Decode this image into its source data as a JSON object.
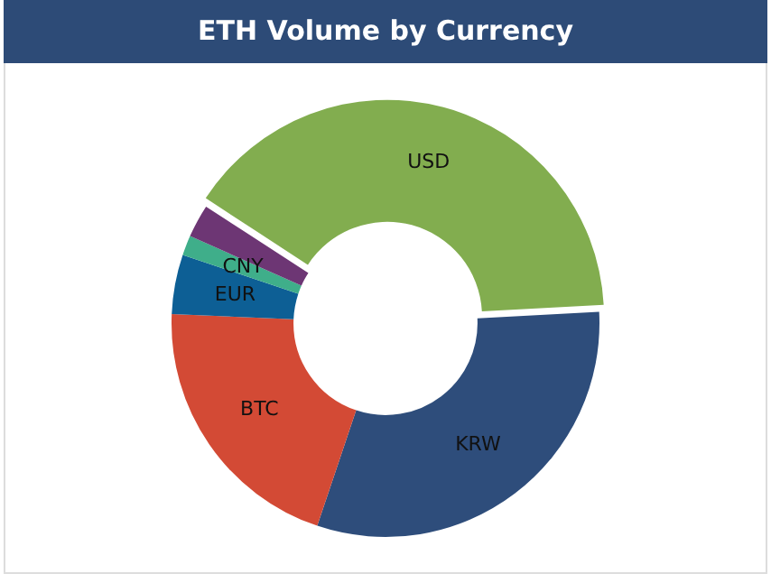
{
  "chart_data": {
    "type": "donut",
    "title": "ETH Volume by Currency",
    "categories": [
      "USD",
      "KRW",
      "BTC",
      "EUR",
      "CNY",
      null
    ],
    "values": [
      40,
      31,
      20.5,
      4.5,
      1.5,
      2.5
    ],
    "colors": [
      "#82ad4f",
      "#2e4d7b",
      "#d34a35",
      "#0d5f95",
      "#3fae8a",
      "#6d3674"
    ],
    "legend": false
  }
}
